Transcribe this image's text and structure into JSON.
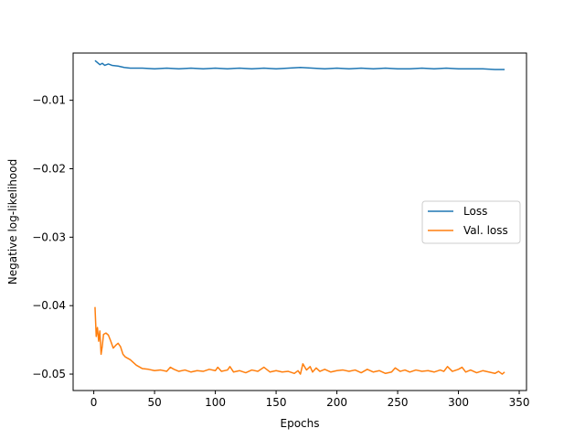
{
  "chart_data": {
    "type": "line",
    "xlabel": "Epochs",
    "ylabel": "Negative log-likelihood",
    "xlim": [
      -17,
      356
    ],
    "ylim": [
      -0.0524,
      -0.0031
    ],
    "x_ticks": [
      0,
      50,
      100,
      150,
      200,
      250,
      300,
      350
    ],
    "y_ticks": [
      -0.01,
      -0.02,
      -0.03,
      -0.04,
      -0.05
    ],
    "x_tick_labels": [
      "0",
      "50",
      "100",
      "150",
      "200",
      "250",
      "300",
      "350"
    ],
    "y_tick_labels": [
      "−0.01",
      "−0.02",
      "−0.03",
      "−0.04",
      "−0.05"
    ],
    "grid": false,
    "legend_position": "center-right",
    "series": [
      {
        "name": "Loss",
        "color": "#1f77b4",
        "x": [
          1,
          3,
          5,
          7,
          9,
          12,
          15,
          20,
          25,
          30,
          40,
          50,
          60,
          70,
          80,
          90,
          100,
          110,
          120,
          130,
          140,
          150,
          160,
          170,
          180,
          190,
          200,
          210,
          220,
          230,
          240,
          250,
          260,
          270,
          280,
          290,
          300,
          310,
          320,
          330,
          338
        ],
        "values": [
          -0.0042,
          -0.0045,
          -0.0048,
          -0.0046,
          -0.0049,
          -0.0047,
          -0.0049,
          -0.005,
          -0.0052,
          -0.0053,
          -0.0053,
          -0.0054,
          -0.0053,
          -0.0054,
          -0.0053,
          -0.0054,
          -0.0053,
          -0.0054,
          -0.0053,
          -0.0054,
          -0.0053,
          -0.0054,
          -0.0053,
          -0.0052,
          -0.0053,
          -0.0054,
          -0.0053,
          -0.0054,
          -0.0053,
          -0.0054,
          -0.0053,
          -0.0054,
          -0.0054,
          -0.0053,
          -0.0054,
          -0.0053,
          -0.0054,
          -0.0054,
          -0.0054,
          -0.0055,
          -0.0055
        ]
      },
      {
        "name": "Val. loss",
        "color": "#ff7f0e",
        "x": [
          1,
          2,
          3,
          4,
          5,
          6,
          7,
          8,
          10,
          12,
          14,
          16,
          18,
          20,
          22,
          24,
          26,
          30,
          35,
          40,
          45,
          50,
          55,
          60,
          63,
          66,
          70,
          75,
          80,
          85,
          90,
          95,
          100,
          102,
          105,
          110,
          112,
          115,
          120,
          125,
          130,
          135,
          140,
          145,
          150,
          155,
          160,
          165,
          168,
          170,
          172,
          175,
          178,
          180,
          183,
          186,
          190,
          195,
          200,
          205,
          210,
          215,
          220,
          225,
          230,
          235,
          240,
          245,
          248,
          252,
          256,
          260,
          265,
          270,
          275,
          280,
          285,
          288,
          291,
          295,
          300,
          303,
          306,
          310,
          315,
          320,
          325,
          330,
          333,
          336,
          338
        ],
        "values": [
          -0.0402,
          -0.0445,
          -0.0432,
          -0.0452,
          -0.0437,
          -0.0471,
          -0.0459,
          -0.0442,
          -0.044,
          -0.0443,
          -0.0452,
          -0.0462,
          -0.0458,
          -0.0455,
          -0.046,
          -0.0471,
          -0.0475,
          -0.0479,
          -0.0487,
          -0.0492,
          -0.0493,
          -0.0495,
          -0.0494,
          -0.0496,
          -0.049,
          -0.0493,
          -0.0496,
          -0.0494,
          -0.0497,
          -0.0495,
          -0.0496,
          -0.0493,
          -0.0495,
          -0.049,
          -0.0496,
          -0.0494,
          -0.0489,
          -0.0497,
          -0.0495,
          -0.0498,
          -0.0494,
          -0.0496,
          -0.049,
          -0.0497,
          -0.0495,
          -0.0497,
          -0.0496,
          -0.0499,
          -0.0495,
          -0.05,
          -0.0485,
          -0.0494,
          -0.0489,
          -0.0497,
          -0.0491,
          -0.0496,
          -0.0493,
          -0.0497,
          -0.0495,
          -0.0494,
          -0.0496,
          -0.0494,
          -0.0498,
          -0.0493,
          -0.0497,
          -0.0495,
          -0.0499,
          -0.0497,
          -0.0491,
          -0.0496,
          -0.0494,
          -0.0497,
          -0.0494,
          -0.0496,
          -0.0495,
          -0.0497,
          -0.0494,
          -0.0496,
          -0.0489,
          -0.0496,
          -0.0493,
          -0.049,
          -0.0497,
          -0.0494,
          -0.0498,
          -0.0495,
          -0.0497,
          -0.0499,
          -0.0496,
          -0.05,
          -0.0497
        ]
      }
    ]
  }
}
